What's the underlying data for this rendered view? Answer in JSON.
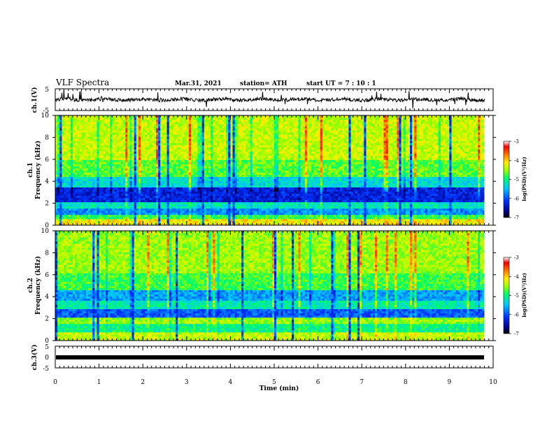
{
  "header": {
    "title": "VLF Spectra",
    "date": "Mar.31, 2021",
    "station": "station= ATH",
    "start": "start UT = 7 : 10 : 1"
  },
  "chart_data": [
    {
      "type": "line",
      "ylabel": "ch.1(V)",
      "ylim": [
        -5,
        5
      ],
      "yticks": [
        "5",
        "-5"
      ],
      "xlim": [
        0,
        10
      ],
      "description_of_signal": "noisy waveform around y≈0 with spikes"
    },
    {
      "type": "heatmap",
      "ylabel": "ch.1\nFrequency (kHz)",
      "ylabel_lines": [
        "ch.1",
        "Frequency (kHz)"
      ],
      "ylim": [
        0,
        10
      ],
      "yticks": [
        "0",
        "2",
        "4",
        "6",
        "8",
        "10"
      ],
      "xlim": [
        0,
        10
      ],
      "colorbar": {
        "label": "log(PSD)(V²/Hz)",
        "ticks": [
          "-3",
          "-4",
          "-5",
          "-6",
          "-7"
        ],
        "range": [
          -7,
          -3
        ]
      }
    },
    {
      "type": "heatmap",
      "ylabel": "ch.2\nFrequency (kHz)",
      "ylabel_lines": [
        "ch.2",
        "Frequency (kHz)"
      ],
      "ylim": [
        0,
        10
      ],
      "yticks": [
        "0",
        "2",
        "4",
        "6",
        "8",
        "10"
      ],
      "xlim": [
        0,
        10
      ],
      "colorbar": {
        "label": "log(PSD)(V²/Hz)",
        "ticks": [
          "-3",
          "-4",
          "-5",
          "-6",
          "-7"
        ],
        "range": [
          -7,
          -3
        ]
      }
    },
    {
      "type": "line",
      "ylabel": "ch.3(V)",
      "ylim": [
        -5,
        5
      ],
      "yticks": [
        "5",
        "0",
        "-5"
      ],
      "xlim": [
        0,
        10
      ],
      "xlabel": "Time (min)",
      "xticks": [
        "0",
        "1",
        "2",
        "3",
        "4",
        "5",
        "6",
        "7",
        "8",
        "9",
        "10"
      ],
      "description_of_signal": "flat thick line at y≈0"
    }
  ]
}
